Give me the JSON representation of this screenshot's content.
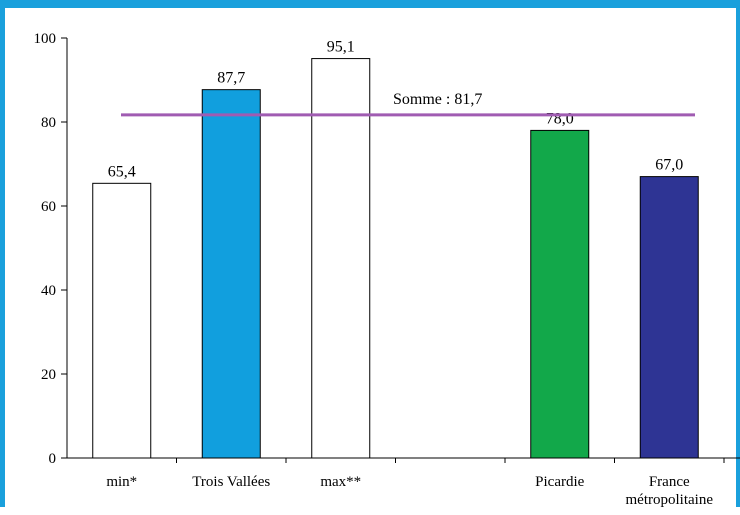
{
  "chart_data": {
    "type": "bar",
    "categories": [
      "min*",
      "Trois Vallées",
      "max**",
      "",
      "Picardie",
      "France métropolitaine"
    ],
    "category_lines": [
      [
        "min*"
      ],
      [
        "Trois Vallées"
      ],
      [
        "max**"
      ],
      [],
      [
        "Picardie"
      ],
      [
        "France",
        "métropolitaine"
      ]
    ],
    "values": [
      65.4,
      87.7,
      95.1,
      null,
      78.0,
      67.0
    ],
    "value_labels": [
      "65,4",
      "87,7",
      "95,1",
      "",
      "78,0",
      "67,0"
    ],
    "bar_colors": [
      "#ffffff",
      "#119fde",
      "#ffffff",
      null,
      "#12a84a",
      "#2e3494"
    ],
    "yticks": [
      0,
      20,
      40,
      60,
      80,
      100
    ],
    "ylim": [
      0,
      100
    ],
    "reference_line": {
      "value": 81.7,
      "label": "Somme : 81,7",
      "color": "#a05cb2"
    },
    "title": "",
    "xlabel": "",
    "ylabel": "",
    "grid": false
  }
}
